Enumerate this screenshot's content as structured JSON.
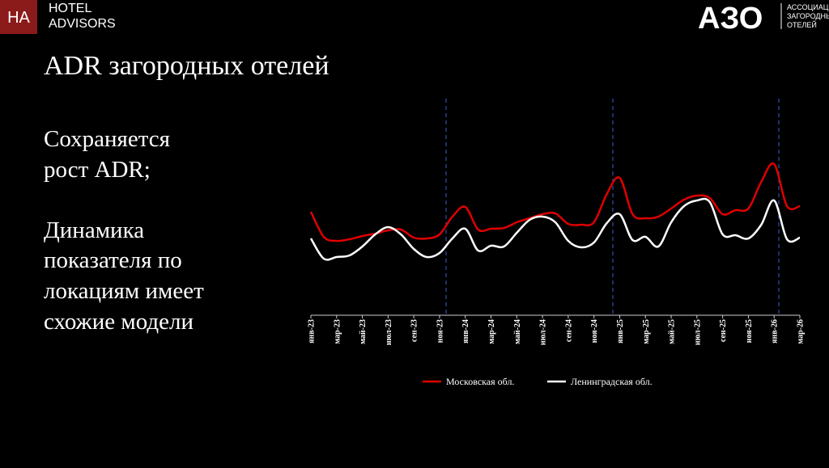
{
  "header": {
    "logo_mark": "HA",
    "logo_lines": [
      "HOTEL",
      "ADVISORS"
    ],
    "assoc_mark": "АЗО",
    "assoc_lines": [
      "АССОЦИАЦ",
      "ЗАГОРОДНЫ",
      "ОТЕЛЕЙ"
    ]
  },
  "title": "ADR загородных отелей",
  "body": [
    [
      "Сохраняется",
      "рост ADR;"
    ],
    [
      "Динамика",
      "показателя по",
      "локациям имеет",
      "схожие модели"
    ]
  ],
  "chart_data": {
    "type": "line",
    "categories": [
      "янв-23",
      null,
      "мар-23",
      null,
      "май-23",
      null,
      "июл-23",
      null,
      "сен-23",
      null,
      "ноя-23",
      null,
      "янв-24",
      null,
      "мар-24",
      null,
      "май-24",
      null,
      "июл-24",
      null,
      "сен-24",
      null,
      "ноя-24",
      null,
      "янв-25",
      null,
      "мар-25",
      null,
      "май-25",
      null,
      "июл-25",
      null,
      "сен-25",
      null,
      "ноя-25",
      null,
      "янв-26",
      null,
      "мар-26"
    ],
    "ylim": [
      0,
      270
    ],
    "series": [
      {
        "name": "Московская обл.",
        "color": "#e00000",
        "values": [
          128,
          97,
          92,
          94,
          98,
          101,
          105,
          106,
          96,
          95,
          100,
          122,
          134,
          106,
          107,
          108,
          115,
          120,
          125,
          126,
          113,
          112,
          115,
          150,
          170,
          125,
          120,
          122,
          132,
          143,
          148,
          145,
          125,
          130,
          132,
          165,
          187,
          135,
          135
        ]
      },
      {
        "name": "Ленинградская обл.",
        "color": "#ffffff",
        "values": [
          95,
          70,
          72,
          74,
          85,
          100,
          109,
          100,
          82,
          72,
          77,
          95,
          107,
          80,
          86,
          85,
          102,
          118,
          122,
          115,
          92,
          84,
          90,
          114,
          125,
          93,
          97,
          85,
          115,
          135,
          142,
          140,
          100,
          99,
          95,
          112,
          142,
          94,
          96
        ]
      }
    ]
  }
}
